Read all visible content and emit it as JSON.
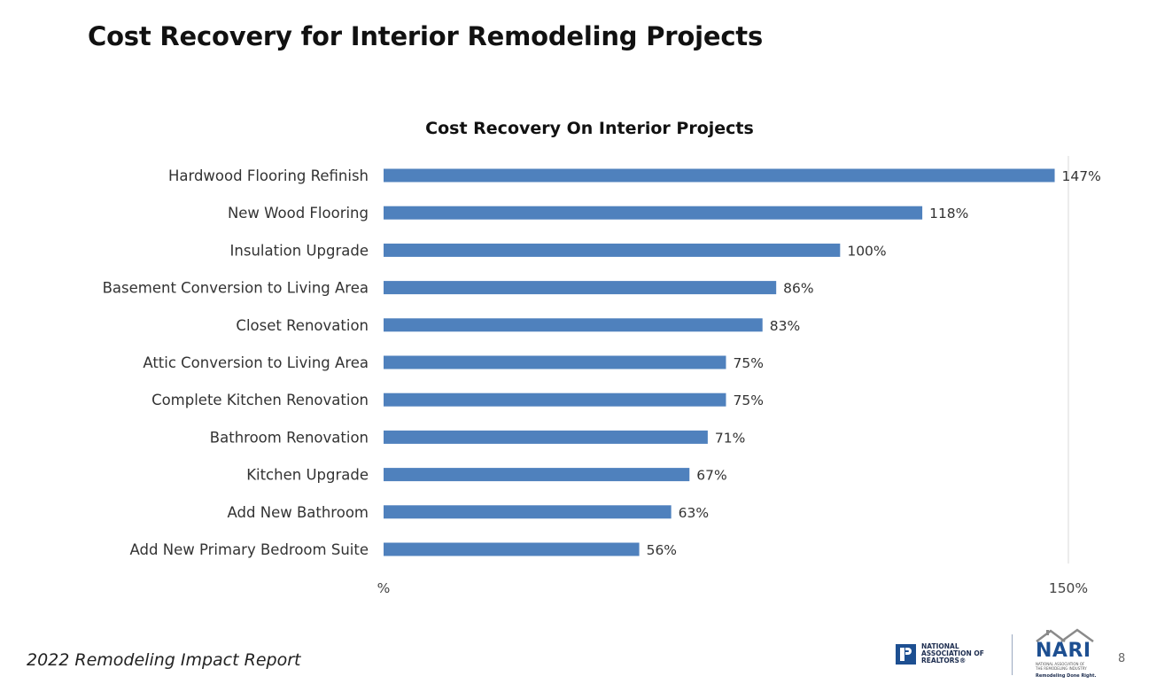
{
  "page": {
    "title": "Cost Recovery for Interior Remodeling Projects",
    "footer": "2022 Remodeling Impact Report",
    "page_number": "8"
  },
  "logos": {
    "nar_text": "NATIONAL\nASSOCIATION OF\nREALTORS®",
    "nari_name": "NARI",
    "nari_subtext": "NATIONAL ASSOCIATION OF\nTHE REMODELING INDUSTRY",
    "nari_tagline": "Remodeling Done Right."
  },
  "colors": {
    "bar": "#4f81bd",
    "gridline": "#d9d9d9"
  },
  "chart_data": {
    "type": "bar",
    "orientation": "horizontal",
    "title": "Cost Recovery On Interior Projects",
    "categories": [
      "Hardwood Flooring Refinish",
      "New Wood Flooring",
      "Insulation Upgrade",
      "Basement Conversion to Living Area",
      "Closet Renovation",
      "Attic Conversion to Living Area",
      "Complete Kitchen Renovation",
      "Bathroom Renovation",
      "Kitchen Upgrade",
      "Add New Bathroom",
      "Add New Primary Bedroom Suite"
    ],
    "values": [
      147,
      118,
      100,
      86,
      83,
      75,
      75,
      71,
      67,
      63,
      56
    ],
    "value_labels": [
      "147%",
      "118%",
      "100%",
      "86%",
      "83%",
      "75%",
      "75%",
      "71%",
      "67%",
      "63%",
      "56%"
    ],
    "xlim": [
      0,
      150
    ],
    "x_tick_labels": [
      "%",
      "150%"
    ],
    "grid": "vertical gridline at 150%",
    "legend": "none"
  }
}
